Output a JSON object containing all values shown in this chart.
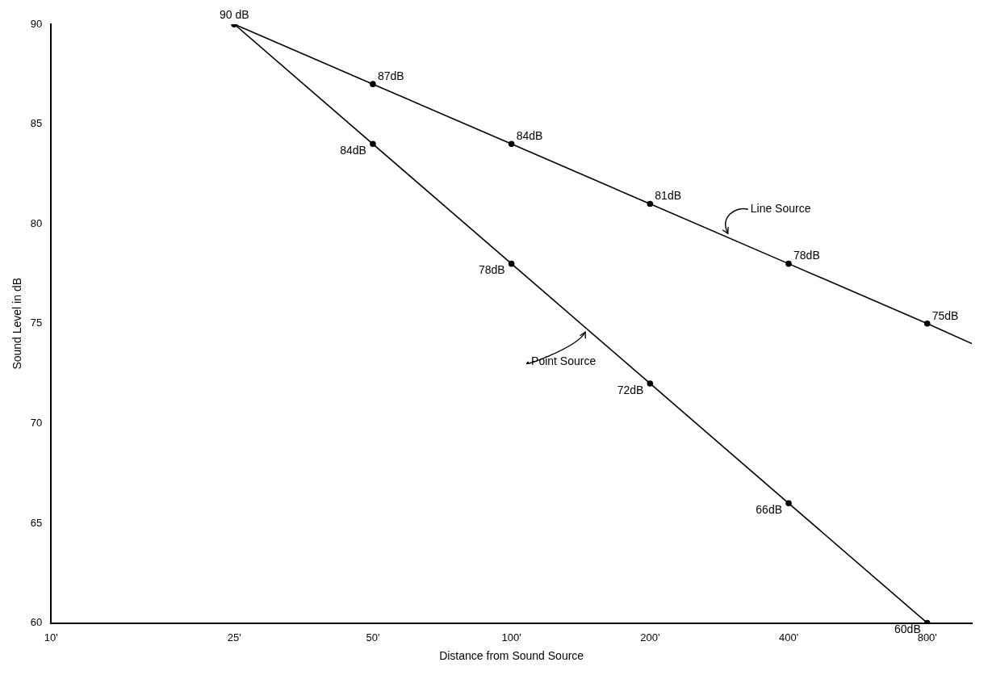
{
  "chart_data": {
    "type": "line",
    "xlabel": "Distance from Sound Source",
    "ylabel": "Sound Level in dB",
    "log": "x",
    "xlim": [
      10,
      1000
    ],
    "xticks": [
      {
        "value": 10,
        "label": "10'"
      },
      {
        "value": 25,
        "label": "25'"
      },
      {
        "value": 50,
        "label": "50'"
      },
      {
        "value": 100,
        "label": "100'"
      },
      {
        "value": 200,
        "label": "200'"
      },
      {
        "value": 400,
        "label": "400'"
      },
      {
        "value": 800,
        "label": "800'"
      }
    ],
    "ylim": [
      60,
      90
    ],
    "yticks": [
      60,
      65,
      70,
      75,
      80,
      85,
      90
    ],
    "grid": false,
    "legend": false,
    "marker": "circle",
    "line_style": "solid",
    "series": [
      {
        "name": "Line Source",
        "color": "#000000",
        "x": [
          25,
          50,
          100,
          200,
          400,
          800,
          1000
        ],
        "values": [
          90,
          87,
          84,
          81,
          78,
          75,
          74
        ],
        "value_labels": [
          "90 dB",
          "87dB",
          "84dB",
          "81dB",
          "78dB",
          "75dB",
          null
        ]
      },
      {
        "name": "Point Source",
        "color": "#000000",
        "x": [
          25,
          50,
          100,
          200,
          400,
          800
        ],
        "values": [
          90,
          84,
          78,
          72,
          66,
          60
        ],
        "value_labels": [
          null,
          "84dB",
          "78dB",
          "72dB",
          "66dB",
          "60dB"
        ]
      }
    ]
  }
}
